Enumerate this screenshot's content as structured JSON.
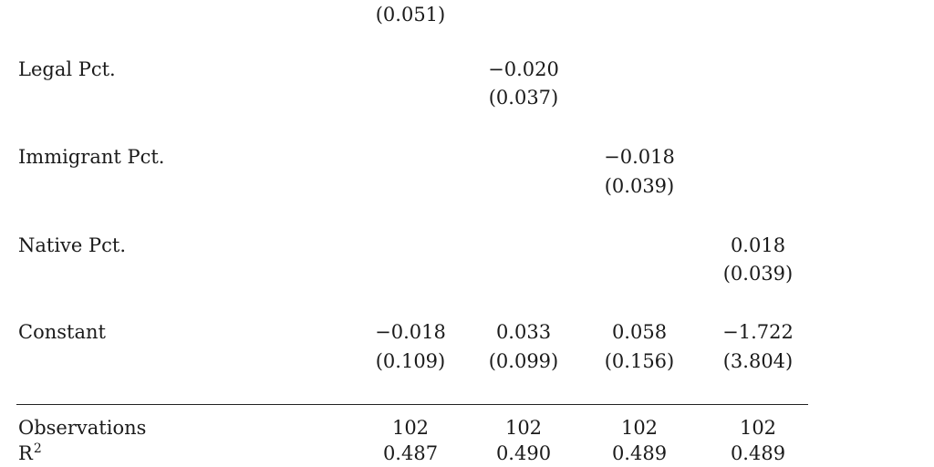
{
  "table": {
    "top_partial_se": "(0.051)",
    "rows": {
      "legal": {
        "label": "Legal Pct.",
        "c2_coef": "−0.020",
        "c2_se": "(0.037)"
      },
      "immigrant": {
        "label": "Immigrant Pct.",
        "c3_coef": "−0.018",
        "c3_se": "(0.039)"
      },
      "native": {
        "label": "Native Pct.",
        "c4_coef": "0.018",
        "c4_se": "(0.039)"
      },
      "constant": {
        "label": "Constant",
        "coefs": [
          "−0.018",
          "0.033",
          "0.058",
          "−1.722"
        ],
        "ses": [
          "(0.109)",
          "(0.099)",
          "(0.156)",
          "(3.804)"
        ]
      }
    },
    "stats": {
      "observations": {
        "label": "Observations",
        "values": [
          "102",
          "102",
          "102",
          "102"
        ]
      },
      "r2": {
        "label_base": "R",
        "label_sup": "2",
        "values": [
          "0.487",
          "0.490",
          "0.489",
          "0.489"
        ]
      }
    }
  }
}
